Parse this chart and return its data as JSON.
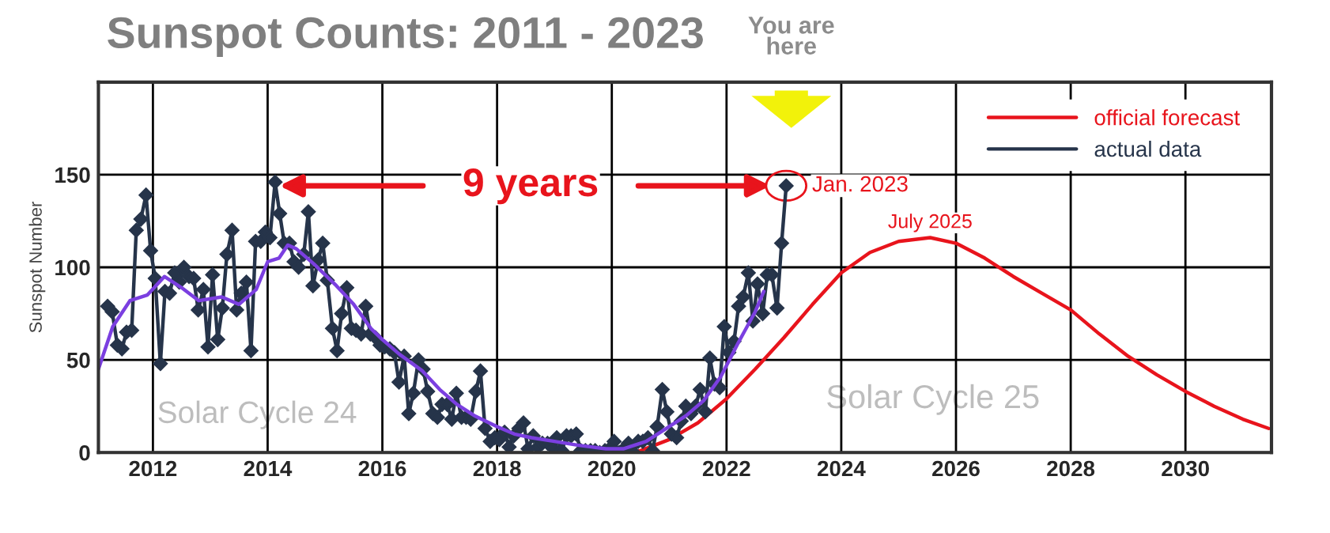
{
  "chart_data": {
    "type": "line",
    "title": "Sunspot Counts: 2011 - 2023",
    "ylabel": "Sunspot Number",
    "xlim": [
      2011.05,
      2031.5
    ],
    "xticks": [
      2012,
      2014,
      2016,
      2018,
      2020,
      2022,
      2024,
      2026,
      2028,
      2030
    ],
    "ylim": [
      0,
      200
    ],
    "yticks": [
      0,
      50,
      100,
      150
    ],
    "grid": true,
    "legend": "top right",
    "series": [
      {
        "name": "official forecast",
        "color": "#e8141c",
        "marker": "none",
        "x": [
          2020.2,
          2020.5,
          2021,
          2021.5,
          2022,
          2022.5,
          2023,
          2023.5,
          2024,
          2024.5,
          2025,
          2025.55,
          2026,
          2026.5,
          2027,
          2027.5,
          2028,
          2028.5,
          2029,
          2029.5,
          2030,
          2030.5,
          2031,
          2031.45
        ],
        "values": [
          0,
          1,
          7,
          16,
          29,
          45,
          62,
          80,
          97,
          108,
          114,
          116,
          113,
          105,
          95,
          86,
          77,
          64,
          52,
          42,
          33,
          25,
          18,
          13
        ]
      },
      {
        "name": "actual data",
        "color": "#26344a",
        "marker": "diamond",
        "x": [
          2011.21,
          2011.29,
          2011.38,
          2011.46,
          2011.54,
          2011.63,
          2011.71,
          2011.79,
          2011.88,
          2011.96,
          2012.04,
          2012.13,
          2012.21,
          2012.29,
          2012.38,
          2012.46,
          2012.54,
          2012.63,
          2012.71,
          2012.79,
          2012.88,
          2012.96,
          2013.04,
          2013.13,
          2013.21,
          2013.29,
          2013.38,
          2013.46,
          2013.54,
          2013.63,
          2013.71,
          2013.79,
          2013.88,
          2013.96,
          2014.04,
          2014.13,
          2014.21,
          2014.29,
          2014.38,
          2014.46,
          2014.54,
          2014.63,
          2014.71,
          2014.79,
          2014.88,
          2014.96,
          2015.04,
          2015.13,
          2015.21,
          2015.29,
          2015.38,
          2015.46,
          2015.54,
          2015.63,
          2015.71,
          2015.79,
          2015.88,
          2015.96,
          2016.04,
          2016.13,
          2016.21,
          2016.29,
          2016.38,
          2016.46,
          2016.54,
          2016.63,
          2016.71,
          2016.79,
          2016.88,
          2016.96,
          2017.04,
          2017.13,
          2017.21,
          2017.29,
          2017.38,
          2017.46,
          2017.54,
          2017.63,
          2017.71,
          2017.79,
          2017.88,
          2017.96,
          2018.04,
          2018.13,
          2018.21,
          2018.29,
          2018.38,
          2018.46,
          2018.54,
          2018.63,
          2018.71,
          2018.79,
          2018.88,
          2018.96,
          2019.04,
          2019.13,
          2019.21,
          2019.29,
          2019.38,
          2019.46,
          2019.54,
          2019.63,
          2019.71,
          2019.79,
          2019.88,
          2019.96,
          2020.04,
          2020.13,
          2020.21,
          2020.29,
          2020.38,
          2020.46,
          2020.54,
          2020.63,
          2020.71,
          2020.79,
          2020.88,
          2020.96,
          2021.04,
          2021.13,
          2021.21,
          2021.29,
          2021.38,
          2021.46,
          2021.54,
          2021.63,
          2021.71,
          2021.79,
          2021.88,
          2021.96,
          2022.04,
          2022.13,
          2022.21,
          2022.29,
          2022.38,
          2022.46,
          2022.54,
          2022.63,
          2022.71,
          2022.79,
          2022.88,
          2022.96,
          2023.04
        ],
        "values": [
          79,
          76,
          58,
          56,
          65,
          66,
          120,
          126,
          139,
          109,
          94,
          48,
          87,
          86,
          97,
          92,
          100,
          95,
          94,
          77,
          88,
          57,
          96,
          61,
          78,
          107,
          120,
          77,
          86,
          92,
          55,
          114,
          114,
          119,
          116,
          146,
          129,
          113,
          113,
          103,
          100,
          107,
          130,
          90,
          104,
          113,
          93,
          67,
          55,
          75,
          89,
          67,
          66,
          64,
          79,
          64,
          62,
          58,
          57,
          56,
          54,
          38,
          52,
          21,
          32,
          50,
          45,
          33,
          21,
          19,
          26,
          26,
          18,
          32,
          19,
          19,
          18,
          33,
          44,
          13,
          6,
          8,
          7,
          11,
          3,
          9,
          13,
          16,
          2,
          9,
          3,
          5,
          5,
          3,
          8,
          1,
          9,
          9,
          10,
          1,
          1,
          1,
          1,
          0,
          1,
          2,
          6,
          0,
          2,
          5,
          0,
          6,
          6,
          8,
          1,
          14,
          34,
          22,
          10,
          8,
          17,
          25,
          21,
          25,
          34,
          22,
          51,
          37,
          35,
          68,
          54,
          60,
          79,
          84,
          97,
          71,
          91,
          75,
          96,
          96,
          78,
          113,
          144
        ]
      },
      {
        "color": "#7b3fe0",
        "marker": "none",
        "x": [
          2011.05,
          2011.3,
          2011.6,
          2011.9,
          2012.2,
          2012.5,
          2012.8,
          2013.2,
          2013.5,
          2013.8,
          2014.0,
          2014.2,
          2014.35,
          2014.5,
          2014.8,
          2015.2,
          2015.5,
          2015.8,
          2016.0,
          2016.3,
          2016.7,
          2017.0,
          2017.3,
          2017.6,
          2018.0,
          2018.3,
          2018.6,
          2019.0,
          2019.4,
          2019.9,
          2020.2,
          2020.6,
          2020.9,
          2021.3,
          2021.6,
          2021.9,
          2022.2,
          2022.5,
          2022.65
        ],
        "values": [
          45,
          68,
          82,
          85,
          95,
          89,
          82,
          84,
          80,
          88,
          103,
          105,
          112,
          110,
          102,
          90,
          80,
          67,
          61,
          53,
          44,
          34,
          26,
          20,
          14,
          10,
          8,
          6,
          4,
          2,
          2,
          6,
          12,
          20,
          28,
          41,
          59,
          76,
          87
        ]
      }
    ],
    "annotations": [
      "9 years",
      {
        "text": "Jan. 2023",
        "x": 2023.04,
        "y": 144
      },
      {
        "text": "July 2025",
        "x": 2025.55,
        "y": 116
      },
      "Solar Cycle 24",
      "Solar Cycle 25",
      "You are here"
    ]
  }
}
